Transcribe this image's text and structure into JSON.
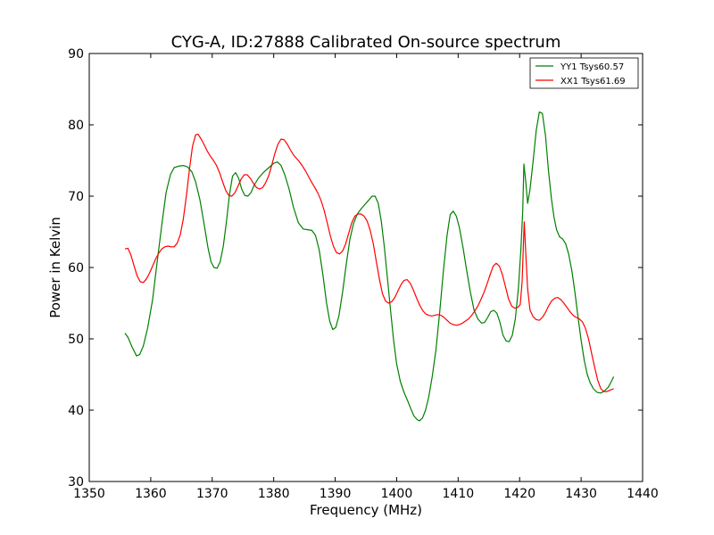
{
  "chart_data": {
    "type": "line",
    "title": "CYG-A, ID:27888 Calibrated On-source spectrum",
    "xlabel": "Frequency (MHz)",
    "ylabel": "Power in Kelvin",
    "xlim": [
      1350,
      1440
    ],
    "ylim": [
      30,
      90
    ],
    "xticks": [
      1350,
      1360,
      1370,
      1380,
      1390,
      1400,
      1410,
      1420,
      1430,
      1440
    ],
    "yticks": [
      30,
      40,
      50,
      60,
      70,
      80,
      90
    ],
    "grid": false,
    "legend_position": "top-right",
    "series": [
      {
        "name": "YY1 Tsys60.57",
        "color": "#008000",
        "points": [
          [
            1355.8,
            50.8
          ],
          [
            1356.3,
            50.2
          ],
          [
            1357,
            48.8
          ],
          [
            1357.7,
            47.6
          ],
          [
            1358.2,
            47.8
          ],
          [
            1358.8,
            49
          ],
          [
            1359.5,
            51.5
          ],
          [
            1360.3,
            55.5
          ],
          [
            1361,
            60.5
          ],
          [
            1361.8,
            66
          ],
          [
            1362.5,
            70.5
          ],
          [
            1363.2,
            73
          ],
          [
            1363.8,
            74
          ],
          [
            1364.5,
            74.2
          ],
          [
            1365.3,
            74.3
          ],
          [
            1366,
            74.1
          ],
          [
            1366.7,
            73.4
          ],
          [
            1367.3,
            72
          ],
          [
            1368,
            69.5
          ],
          [
            1368.7,
            66
          ],
          [
            1369.3,
            62.8
          ],
          [
            1369.8,
            60.8
          ],
          [
            1370.3,
            60
          ],
          [
            1370.8,
            59.9
          ],
          [
            1371.3,
            60.8
          ],
          [
            1371.8,
            63
          ],
          [
            1372.3,
            66.3
          ],
          [
            1372.8,
            70.2
          ],
          [
            1373.3,
            72.8
          ],
          [
            1373.8,
            73.3
          ],
          [
            1374.3,
            72.5
          ],
          [
            1374.8,
            71
          ],
          [
            1375.3,
            70.1
          ],
          [
            1375.8,
            70
          ],
          [
            1376.3,
            70.5
          ],
          [
            1376.8,
            71.5
          ],
          [
            1377.5,
            72.5
          ],
          [
            1378.3,
            73.3
          ],
          [
            1379.2,
            74
          ],
          [
            1380,
            74.6
          ],
          [
            1380.6,
            74.8
          ],
          [
            1381.2,
            74.3
          ],
          [
            1381.8,
            73
          ],
          [
            1382.5,
            71
          ],
          [
            1383.2,
            68.5
          ],
          [
            1384,
            66.3
          ],
          [
            1384.8,
            65.4
          ],
          [
            1385.5,
            65.3
          ],
          [
            1386.2,
            65.2
          ],
          [
            1386.8,
            64.5
          ],
          [
            1387.4,
            62.5
          ],
          [
            1388,
            59
          ],
          [
            1388.6,
            55
          ],
          [
            1389.1,
            52.5
          ],
          [
            1389.6,
            51.3
          ],
          [
            1390.1,
            51.6
          ],
          [
            1390.6,
            53.2
          ],
          [
            1391.2,
            56.5
          ],
          [
            1391.8,
            60.5
          ],
          [
            1392.4,
            64
          ],
          [
            1393,
            66.2
          ],
          [
            1393.6,
            67.5
          ],
          [
            1394.2,
            68.2
          ],
          [
            1394.8,
            68.8
          ],
          [
            1395.4,
            69.4
          ],
          [
            1396,
            70
          ],
          [
            1396.5,
            70
          ],
          [
            1397,
            69
          ],
          [
            1397.5,
            66.5
          ],
          [
            1398,
            62.8
          ],
          [
            1398.5,
            58.5
          ],
          [
            1399,
            54
          ],
          [
            1399.5,
            49.8
          ],
          [
            1400,
            46.5
          ],
          [
            1400.6,
            44
          ],
          [
            1401.2,
            42.5
          ],
          [
            1401.8,
            41.3
          ],
          [
            1402.3,
            40.2
          ],
          [
            1402.8,
            39.2
          ],
          [
            1403.3,
            38.7
          ],
          [
            1403.7,
            38.5
          ],
          [
            1404.2,
            38.9
          ],
          [
            1404.7,
            40
          ],
          [
            1405.2,
            41.8
          ],
          [
            1405.8,
            44.8
          ],
          [
            1406.4,
            48.5
          ],
          [
            1407,
            53.8
          ],
          [
            1407.6,
            59.5
          ],
          [
            1408.2,
            64.5
          ],
          [
            1408.7,
            67.4
          ],
          [
            1409.2,
            67.9
          ],
          [
            1409.7,
            67.2
          ],
          [
            1410.2,
            65.6
          ],
          [
            1410.8,
            62.8
          ],
          [
            1411.4,
            59.5
          ],
          [
            1412,
            56.5
          ],
          [
            1412.6,
            54
          ],
          [
            1413.2,
            52.8
          ],
          [
            1413.8,
            52.2
          ],
          [
            1414.3,
            52.3
          ],
          [
            1414.8,
            53
          ],
          [
            1415.3,
            53.8
          ],
          [
            1415.8,
            54
          ],
          [
            1416.3,
            53.6
          ],
          [
            1416.8,
            52.3
          ],
          [
            1417.3,
            50.5
          ],
          [
            1417.8,
            49.7
          ],
          [
            1418.3,
            49.6
          ],
          [
            1418.8,
            50.5
          ],
          [
            1419.3,
            52.8
          ],
          [
            1419.8,
            57
          ],
          [
            1420.2,
            62.5
          ],
          [
            1420.5,
            68
          ],
          [
            1420.7,
            74.5
          ],
          [
            1421,
            72
          ],
          [
            1421.3,
            69
          ],
          [
            1421.7,
            71
          ],
          [
            1422.2,
            75
          ],
          [
            1422.7,
            79.2
          ],
          [
            1423.2,
            81.8
          ],
          [
            1423.7,
            81.6
          ],
          [
            1424.2,
            78.5
          ],
          [
            1424.7,
            73.5
          ],
          [
            1425.2,
            69.5
          ],
          [
            1425.6,
            67
          ],
          [
            1426,
            65.3
          ],
          [
            1426.5,
            64.3
          ],
          [
            1427,
            64
          ],
          [
            1427.5,
            63.3
          ],
          [
            1428,
            61.8
          ],
          [
            1428.5,
            59.5
          ],
          [
            1429,
            56.5
          ],
          [
            1429.5,
            53
          ],
          [
            1430,
            49.8
          ],
          [
            1430.5,
            47
          ],
          [
            1431,
            45
          ],
          [
            1431.5,
            43.8
          ],
          [
            1432,
            43
          ],
          [
            1432.6,
            42.5
          ],
          [
            1433.2,
            42.4
          ],
          [
            1433.8,
            42.7
          ],
          [
            1434.4,
            43.2
          ],
          [
            1434.9,
            44
          ],
          [
            1435.3,
            44.7
          ]
        ]
      },
      {
        "name": "XX1 Tsys61.69",
        "color": "#ff0000",
        "points": [
          [
            1355.8,
            62.6
          ],
          [
            1356.3,
            62.7
          ],
          [
            1356.8,
            61.7
          ],
          [
            1357.3,
            60.2
          ],
          [
            1357.8,
            58.8
          ],
          [
            1358.3,
            58
          ],
          [
            1358.8,
            57.9
          ],
          [
            1359.3,
            58.4
          ],
          [
            1359.8,
            59.2
          ],
          [
            1360.3,
            60.2
          ],
          [
            1360.8,
            61.2
          ],
          [
            1361.3,
            62
          ],
          [
            1361.8,
            62.6
          ],
          [
            1362.3,
            62.9
          ],
          [
            1362.8,
            63
          ],
          [
            1363.3,
            62.9
          ],
          [
            1363.8,
            62.9
          ],
          [
            1364.3,
            63.4
          ],
          [
            1364.8,
            64.6
          ],
          [
            1365.3,
            66.8
          ],
          [
            1365.8,
            70
          ],
          [
            1366.3,
            73.8
          ],
          [
            1366.8,
            77
          ],
          [
            1367.3,
            78.6
          ],
          [
            1367.7,
            78.7
          ],
          [
            1368.2,
            78
          ],
          [
            1368.7,
            77.2
          ],
          [
            1369.2,
            76.3
          ],
          [
            1369.7,
            75.6
          ],
          [
            1370.2,
            75
          ],
          [
            1370.7,
            74.3
          ],
          [
            1371.2,
            73.3
          ],
          [
            1371.7,
            72
          ],
          [
            1372.2,
            70.8
          ],
          [
            1372.7,
            70.1
          ],
          [
            1373.2,
            70
          ],
          [
            1373.7,
            70.5
          ],
          [
            1374.2,
            71.4
          ],
          [
            1374.7,
            72.4
          ],
          [
            1375.2,
            73
          ],
          [
            1375.7,
            73
          ],
          [
            1376.2,
            72.5
          ],
          [
            1376.7,
            71.8
          ],
          [
            1377.2,
            71.2
          ],
          [
            1377.7,
            71
          ],
          [
            1378.2,
            71.2
          ],
          [
            1378.7,
            71.9
          ],
          [
            1379.2,
            72.9
          ],
          [
            1379.7,
            74.4
          ],
          [
            1380.2,
            76
          ],
          [
            1380.7,
            77.3
          ],
          [
            1381.2,
            78
          ],
          [
            1381.7,
            77.9
          ],
          [
            1382.2,
            77.3
          ],
          [
            1382.7,
            76.5
          ],
          [
            1383.2,
            75.8
          ],
          [
            1383.7,
            75.3
          ],
          [
            1384.2,
            74.8
          ],
          [
            1384.7,
            74.2
          ],
          [
            1385.2,
            73.5
          ],
          [
            1385.7,
            72.7
          ],
          [
            1386.2,
            71.9
          ],
          [
            1386.7,
            71.2
          ],
          [
            1387.2,
            70.4
          ],
          [
            1387.7,
            69.4
          ],
          [
            1388.2,
            68
          ],
          [
            1388.7,
            66.3
          ],
          [
            1389.2,
            64.5
          ],
          [
            1389.7,
            63
          ],
          [
            1390.2,
            62.1
          ],
          [
            1390.7,
            61.9
          ],
          [
            1391.2,
            62.3
          ],
          [
            1391.7,
            63.3
          ],
          [
            1392.2,
            64.8
          ],
          [
            1392.7,
            66.3
          ],
          [
            1393.2,
            67.2
          ],
          [
            1393.7,
            67.5
          ],
          [
            1394.2,
            67.5
          ],
          [
            1394.7,
            67.2
          ],
          [
            1395.2,
            66.5
          ],
          [
            1395.7,
            65.2
          ],
          [
            1396.2,
            63.3
          ],
          [
            1396.7,
            60.8
          ],
          [
            1397.2,
            58.3
          ],
          [
            1397.7,
            56.3
          ],
          [
            1398.2,
            55.3
          ],
          [
            1398.7,
            55
          ],
          [
            1399.2,
            55.2
          ],
          [
            1399.7,
            55.8
          ],
          [
            1400.2,
            56.7
          ],
          [
            1400.7,
            57.6
          ],
          [
            1401.2,
            58.2
          ],
          [
            1401.7,
            58.3
          ],
          [
            1402.2,
            57.8
          ],
          [
            1402.7,
            56.9
          ],
          [
            1403.2,
            55.8
          ],
          [
            1403.7,
            54.8
          ],
          [
            1404.2,
            54
          ],
          [
            1404.7,
            53.5
          ],
          [
            1405.2,
            53.3
          ],
          [
            1405.7,
            53.2
          ],
          [
            1406.2,
            53.3
          ],
          [
            1406.7,
            53.4
          ],
          [
            1407.2,
            53.3
          ],
          [
            1407.7,
            53
          ],
          [
            1408.2,
            52.6
          ],
          [
            1408.7,
            52.2
          ],
          [
            1409.2,
            52
          ],
          [
            1409.7,
            51.9
          ],
          [
            1410.2,
            52
          ],
          [
            1410.7,
            52.2
          ],
          [
            1411.2,
            52.5
          ],
          [
            1411.7,
            52.8
          ],
          [
            1412.2,
            53.3
          ],
          [
            1412.7,
            53.9
          ],
          [
            1413.2,
            54.6
          ],
          [
            1413.7,
            55.5
          ],
          [
            1414.2,
            56.5
          ],
          [
            1414.7,
            57.7
          ],
          [
            1415.2,
            59
          ],
          [
            1415.7,
            60.2
          ],
          [
            1416.2,
            60.6
          ],
          [
            1416.7,
            60.2
          ],
          [
            1417.2,
            59
          ],
          [
            1417.7,
            57.3
          ],
          [
            1418.2,
            55.6
          ],
          [
            1418.7,
            54.6
          ],
          [
            1419.2,
            54.3
          ],
          [
            1419.7,
            54.4
          ],
          [
            1420.1,
            54.8
          ],
          [
            1420.4,
            58
          ],
          [
            1420.6,
            63
          ],
          [
            1420.75,
            66.4
          ],
          [
            1421,
            62
          ],
          [
            1421.3,
            57
          ],
          [
            1421.7,
            54
          ],
          [
            1422.2,
            53.1
          ],
          [
            1422.7,
            52.7
          ],
          [
            1423.2,
            52.6
          ],
          [
            1423.7,
            53
          ],
          [
            1424.2,
            53.7
          ],
          [
            1424.7,
            54.6
          ],
          [
            1425.2,
            55.3
          ],
          [
            1425.7,
            55.7
          ],
          [
            1426.2,
            55.8
          ],
          [
            1426.7,
            55.5
          ],
          [
            1427.2,
            55
          ],
          [
            1427.7,
            54.4
          ],
          [
            1428.2,
            53.8
          ],
          [
            1428.7,
            53.3
          ],
          [
            1429.2,
            53
          ],
          [
            1429.7,
            52.8
          ],
          [
            1430.2,
            52.4
          ],
          [
            1430.7,
            51.5
          ],
          [
            1431.2,
            50
          ],
          [
            1431.7,
            48
          ],
          [
            1432.2,
            46
          ],
          [
            1432.7,
            44.2
          ],
          [
            1433.2,
            43
          ],
          [
            1433.7,
            42.6
          ],
          [
            1434.2,
            42.6
          ],
          [
            1434.7,
            42.8
          ],
          [
            1435.3,
            43
          ]
        ]
      }
    ]
  }
}
